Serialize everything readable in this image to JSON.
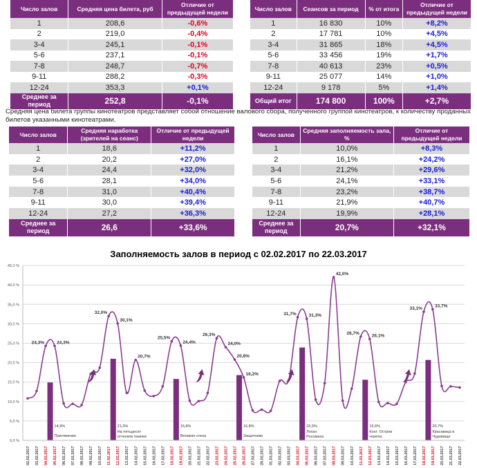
{
  "table_price": {
    "headers": [
      "Число залов",
      "Средняя цена билета, руб",
      "Отличие от предыдущей недели"
    ],
    "rows": [
      [
        "1",
        "208,6",
        "-0,6%"
      ],
      [
        "2",
        "219,0",
        "-0,4%"
      ],
      [
        "3-4",
        "245,1",
        "-0,1%"
      ],
      [
        "5-6",
        "237,1",
        "-0,1%"
      ],
      [
        "7-8",
        "248,7",
        "-0,7%"
      ],
      [
        "9-11",
        "288,2",
        "-0,3%"
      ],
      [
        "12-24",
        "353,3",
        "+0,1%"
      ]
    ],
    "footer": [
      "Среднее за период",
      "252,8",
      "-0,1%"
    ]
  },
  "table_sessions": {
    "headers": [
      "Число залов",
      "Сеансов за период",
      "% от итога",
      "Отличие от предыдущей недели"
    ],
    "rows": [
      [
        "1",
        "16 830",
        "10%",
        "+8,2%"
      ],
      [
        "2",
        "17 781",
        "10%",
        "+4,5%"
      ],
      [
        "3-4",
        "31 865",
        "18%",
        "+4,5%"
      ],
      [
        "5-6",
        "33 456",
        "19%",
        "+1,7%"
      ],
      [
        "7-8",
        "40 613",
        "23%",
        "+0,5%"
      ],
      [
        "9-11",
        "25 077",
        "14%",
        "+1,0%"
      ],
      [
        "12-24",
        "9 178",
        "5%",
        "+1,4%"
      ]
    ],
    "footer": [
      "Общий итог",
      "174 800",
      "100%",
      "+2,7%"
    ]
  },
  "note": "Средняя цена билета группы кинотеатров представляет собой отношение валового сбора, полученного группой кинотеатров, к количеству проданных билетов указанными кинотеатрами.",
  "table_attendance": {
    "headers": [
      "Число залов",
      "Средняя наработка (зрителей на сеанс)",
      "Отличие от предыдущей недели"
    ],
    "rows": [
      [
        "1",
        "18,6",
        "+11,2%"
      ],
      [
        "2",
        "20,2",
        "+27,0%"
      ],
      [
        "3-4",
        "24,4",
        "+32,0%"
      ],
      [
        "5-6",
        "28,1",
        "+34,0%"
      ],
      [
        "7-8",
        "31,0",
        "+40,4%"
      ],
      [
        "9-11",
        "30,0",
        "+39,4%"
      ],
      [
        "12-24",
        "27,2",
        "+36,3%"
      ]
    ],
    "footer": [
      "Среднее за период",
      "26,6",
      "+33,6%"
    ]
  },
  "table_occupancy": {
    "headers": [
      "Число залов",
      "Средняя заполняемость зала, %",
      "Отличие от предыдущей недели"
    ],
    "rows": [
      [
        "1",
        "10,0%",
        "+8,3%"
      ],
      [
        "2",
        "16,1%",
        "+24,2%"
      ],
      [
        "3-4",
        "21,2%",
        "+29,6%"
      ],
      [
        "5-6",
        "24,1%",
        "+33,1%"
      ],
      [
        "7-8",
        "23,2%",
        "+38,7%"
      ],
      [
        "9-11",
        "21,9%",
        "+40,7%"
      ],
      [
        "12-24",
        "19,9%",
        "+28,1%"
      ]
    ],
    "footer": [
      "Среднее за период",
      "20,7%",
      "+32,1%"
    ]
  },
  "chart_data": {
    "type": "line",
    "title": "Заполняемость залов в период с 02.02.2017 по 22.03.2017",
    "ylim": [
      0,
      45
    ],
    "yticks": [
      "0,0 %",
      "5,0 %",
      "10,0 %",
      "15,0 %",
      "20,0 %",
      "25,0 %",
      "30,0 %",
      "35,0 %",
      "40,0 %",
      "45,0 %"
    ],
    "x": [
      "02.02.2017",
      "03.02.2017",
      "04.02.2017",
      "05.02.2017",
      "06.02.2017",
      "07.02.2017",
      "08.02.2017",
      "09.02.2017",
      "10.02.2017",
      "11.02.2017",
      "12.02.2017",
      "13.02.2017",
      "14.02.2017",
      "15.02.2017",
      "16.02.2017",
      "17.02.2017",
      "18.02.2017",
      "19.02.2017",
      "20.02.2017",
      "21.02.2017",
      "22.02.2017",
      "23.02.2017",
      "24.02.2017",
      "25.02.2017",
      "26.02.2017",
      "27.02.2017",
      "28.02.2017",
      "01.03.2017",
      "02.03.2017",
      "03.03.2017",
      "04.03.2017",
      "05.03.2017",
      "06.03.2017",
      "07.03.2017",
      "08.03.2017",
      "09.03.2017",
      "10.03.2017",
      "11.03.2017",
      "12.03.2017",
      "13.03.2017",
      "14.03.2017",
      "15.03.2017",
      "16.03.2017",
      "17.03.2017",
      "18.03.2017",
      "19.03.2017",
      "20.03.2017",
      "21.03.2017",
      "22.03.2017"
    ],
    "holidays": [
      2,
      3,
      9,
      10,
      16,
      17,
      21,
      22,
      23,
      24,
      30,
      31,
      34,
      37,
      38,
      44,
      45
    ],
    "values": [
      10.8,
      12.7,
      24.3,
      24.3,
      9.5,
      9.4,
      9.1,
      17.1,
      18.7,
      32.0,
      30.1,
      12.2,
      20.7,
      12.8,
      11.4,
      13.9,
      25.5,
      24.4,
      10.2,
      10.1,
      12.2,
      26.3,
      24.0,
      20.8,
      16.2,
      7.7,
      7.9,
      7.6,
      15.3,
      15.5,
      31.7,
      31.3,
      10.5,
      14.7,
      42.0,
      10.2,
      13.3,
      26.7,
      26.1,
      9.9,
      9.6,
      9.4,
      15.0,
      17.2,
      33.1,
      33.7,
      14.0,
      13.9,
      13.6
    ],
    "labels": {
      "2": "24,3%",
      "3": "24,3%",
      "9": "32,0%",
      "10": "30,1%",
      "12": "20,7%",
      "16": "25,5%",
      "17": "24,4%",
      "21": "26,3%",
      "22": "24,0%",
      "23": "20,8%",
      "24": "16,2%",
      "30": "31,7%",
      "31": "31,3%",
      "34": "42,0%",
      "37": "26,7%",
      "38": "26,1%",
      "44": "33,1%",
      "45": "33,7%"
    },
    "bars": [
      {
        "at": 2.5,
        "value": 14.9,
        "label": "14,9%",
        "film": "Притяжение"
      },
      {
        "at": 9.5,
        "value": 21.0,
        "label": "21,0%",
        "film": "На пятьдесят оттенков темнее"
      },
      {
        "at": 16.5,
        "value": 15.8,
        "label": "15,8%",
        "film": "Великая стена"
      },
      {
        "at": 23.5,
        "value": 16.8,
        "label": "16,8%",
        "film": "Защитники"
      },
      {
        "at": 30.5,
        "value": 23.9,
        "label": "23,9%",
        "film": "Логан: Росомаха"
      },
      {
        "at": 37.5,
        "value": 15.6,
        "label": "15,6%",
        "film": "Конг: Остров черепа"
      },
      {
        "at": 44.5,
        "value": 20.7,
        "label": "20,7%",
        "film": "Красавица и Чудовище"
      }
    ],
    "arrows": [
      7,
      19,
      29,
      42
    ],
    "colors": {
      "line": "#8b3a8f",
      "bar": "#7b2d7e",
      "holiday": "#e0001b"
    }
  }
}
